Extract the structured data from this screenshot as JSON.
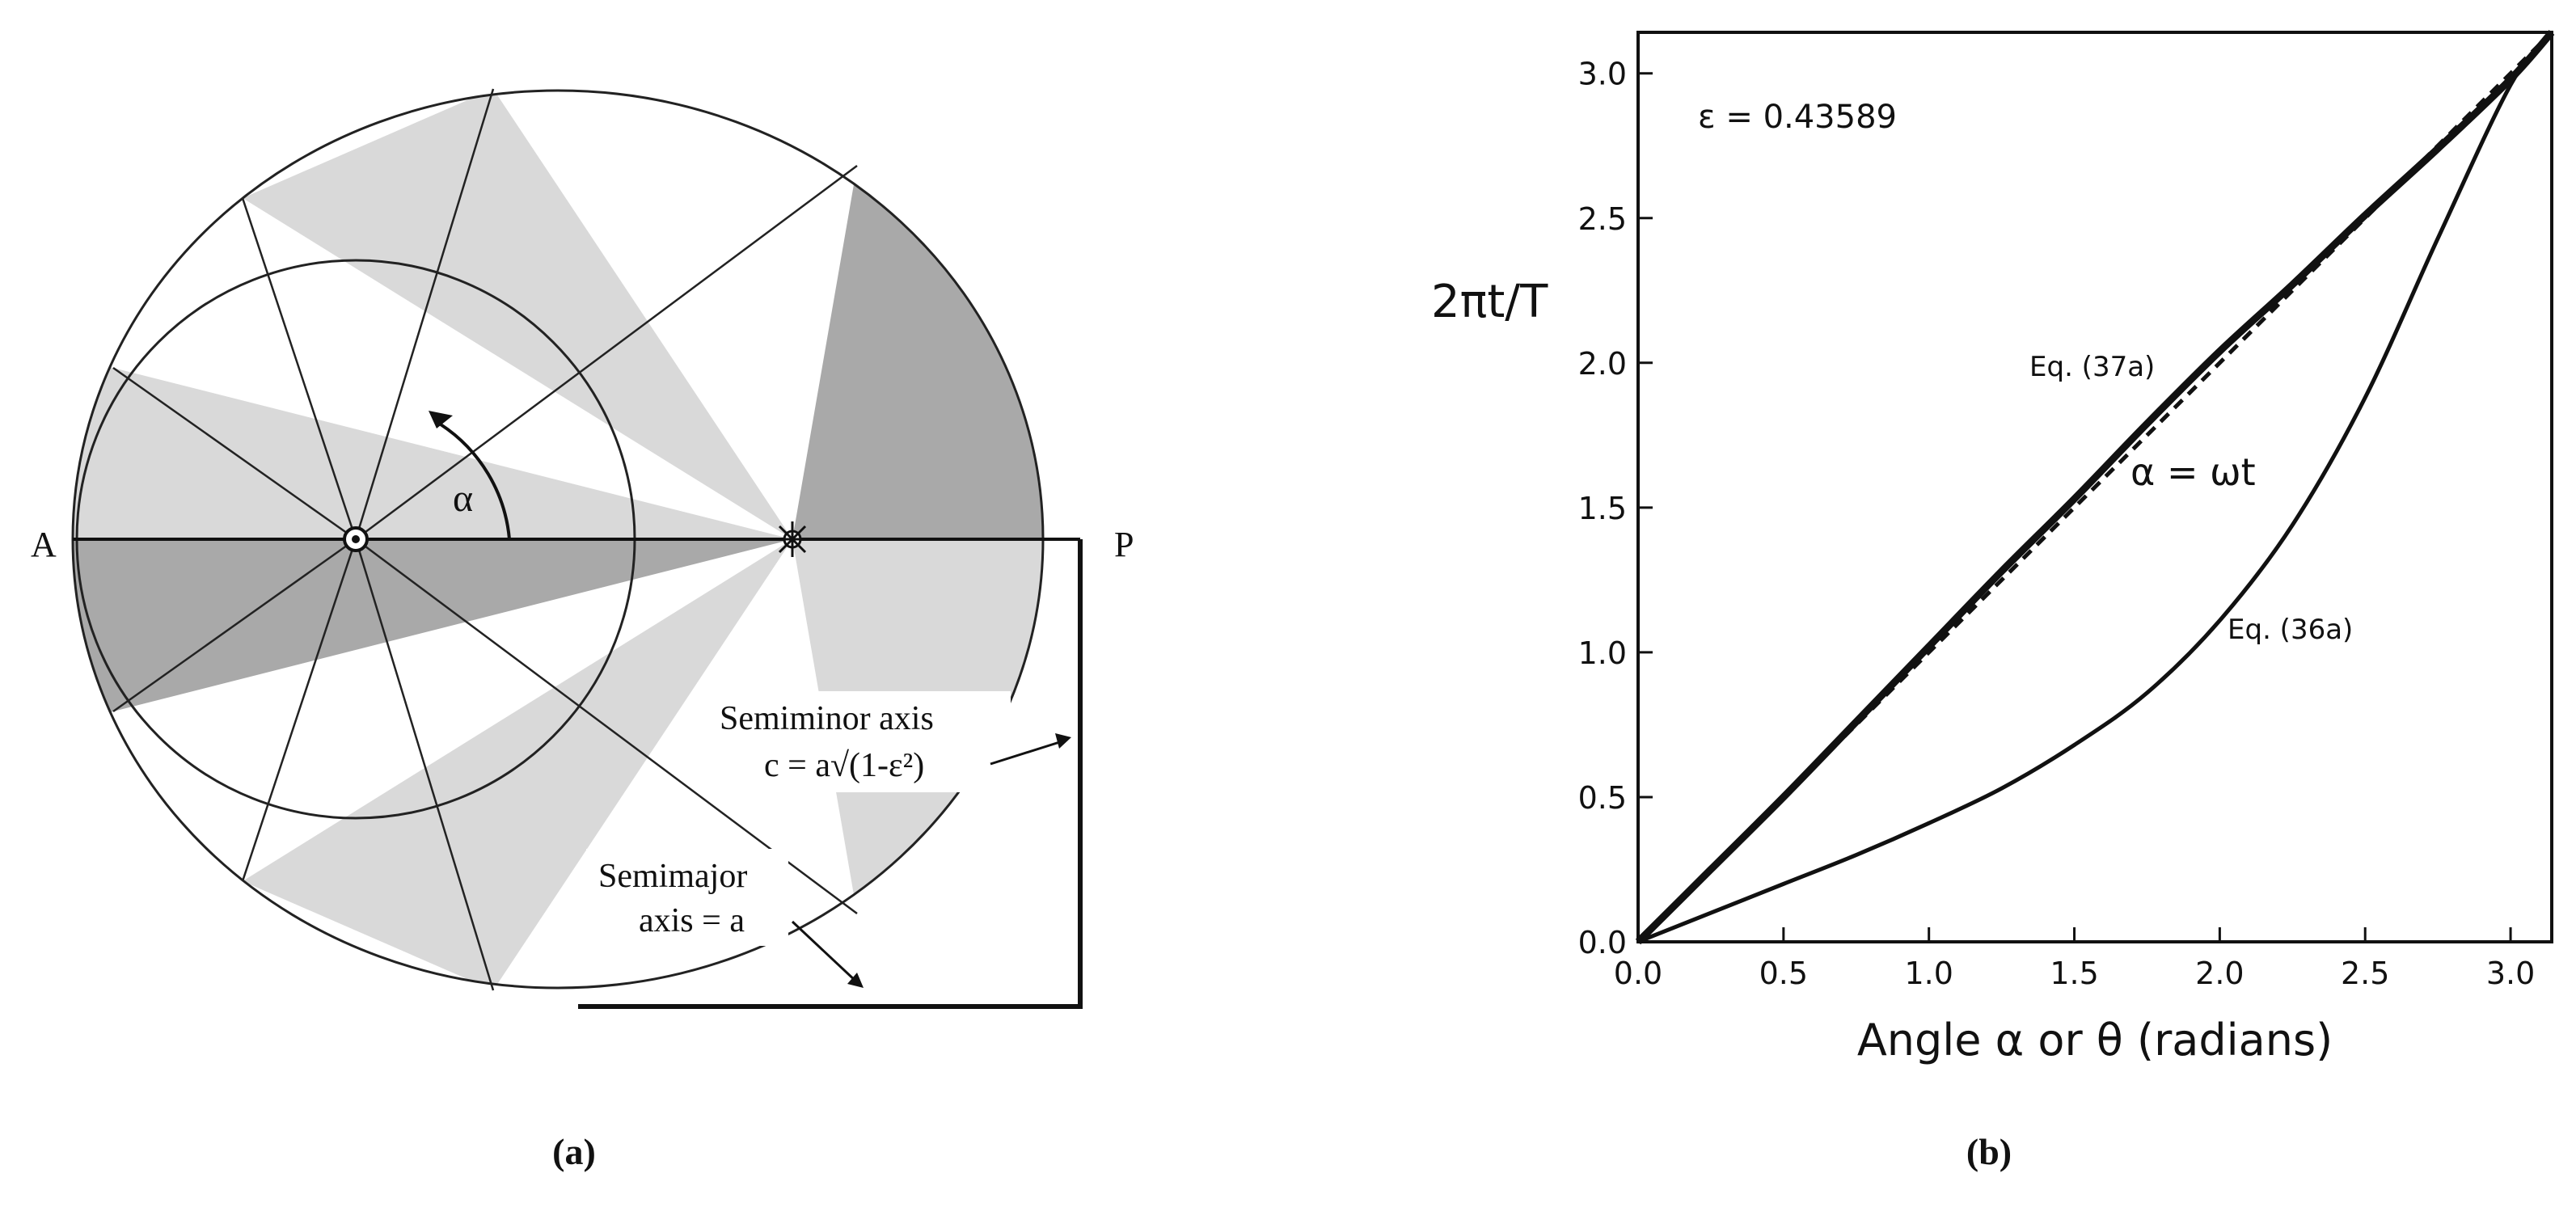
{
  "panel_a": {
    "caption": "(a)",
    "label_aphelion": "A",
    "label_perihelion": "P",
    "label_alpha": "α",
    "semiminor_line1": "Semiminor axis",
    "semiminor_line2": "c = a√(1-ε²)",
    "semimajor_line1": "Semimajor",
    "semimajor_line2": "axis = a",
    "eccentricity": 0.43589,
    "shade_colors": {
      "light": "#d9d9d9",
      "dark": "#a9a9a9"
    }
  },
  "panel_b": {
    "caption": "(b)",
    "ylabel": "2πt/T",
    "xlabel": "Angle α or θ (radians)",
    "epsilon_label": "ε = 0.43589",
    "eq37_label": "Eq. (37a)",
    "eq36_label": "Eq. (36a)",
    "alpha_label": "α = ωt"
  },
  "chart_data": {
    "type": "line",
    "xlabel": "Angle α or θ (radians)",
    "ylabel": "2πt/T",
    "xlim": [
      0,
      3.14159
    ],
    "ylim": [
      0,
      3.14159
    ],
    "xticks": [
      "0.0",
      "0.5",
      "1.0",
      "1.5",
      "2.0",
      "2.5",
      "3.0"
    ],
    "yticks": [
      "0.0",
      "0.5",
      "1.0",
      "1.5",
      "2.0",
      "2.5",
      "3.0"
    ],
    "eccentricity": 0.43589,
    "series": [
      {
        "name": "Eq. (37a)",
        "style": "thick solid",
        "x": [
          0,
          0.25,
          0.5,
          0.75,
          1.0,
          1.25,
          1.5,
          1.75,
          2.0,
          2.25,
          2.5,
          2.75,
          3.0,
          3.14159
        ],
        "y": [
          0,
          0.25,
          0.5,
          0.76,
          1.02,
          1.28,
          1.53,
          1.79,
          2.04,
          2.27,
          2.51,
          2.74,
          2.98,
          3.14159
        ]
      },
      {
        "name": "α = ωt",
        "style": "dashed",
        "x": [
          0,
          3.14159
        ],
        "y": [
          0,
          3.14159
        ]
      },
      {
        "name": "Eq. (36a)",
        "style": "thin solid",
        "x": [
          0,
          0.25,
          0.5,
          0.75,
          1.0,
          1.25,
          1.5,
          1.75,
          2.0,
          2.25,
          2.5,
          2.75,
          3.0,
          3.14159
        ],
        "y": [
          0,
          0.1,
          0.2,
          0.3,
          0.41,
          0.53,
          0.68,
          0.86,
          1.11,
          1.44,
          1.88,
          2.43,
          2.96,
          3.14159
        ]
      }
    ]
  }
}
